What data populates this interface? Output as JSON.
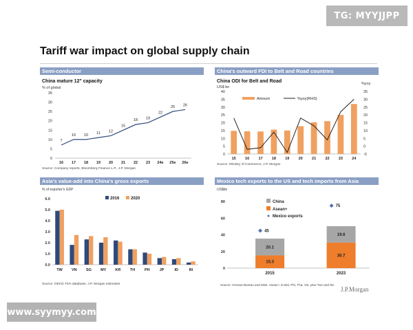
{
  "watermarks": {
    "top": "TG: MYYJJPP",
    "bottom": "www.syymyy.com"
  },
  "page_title": "Tariff war impact on global supply chain",
  "footer_brand": "J.P.Morgan",
  "colors": {
    "header": "#8a9fc4",
    "orange": "#f0a060",
    "orange_dark": "#ee7d2c",
    "navy": "#2e4a7a",
    "gray": "#a6a6a6",
    "blue_marker": "#4f6fb0"
  },
  "chart_data": [
    {
      "id": "semiconductor",
      "type": "line",
      "panel_header": "Semi-conductor",
      "title": "China mature 12\" capacity",
      "ylabel": "% of global",
      "categories": [
        "16",
        "17",
        "18",
        "19",
        "20",
        "21",
        "22",
        "23",
        "24e",
        "25e",
        "26e"
      ],
      "values": [
        7,
        10,
        10,
        11,
        12,
        15,
        18,
        19,
        22,
        25,
        26
      ],
      "ylim": [
        0,
        35
      ],
      "yticks": [
        0,
        5,
        10,
        15,
        20,
        25,
        30,
        35
      ],
      "source": "Source: Company reports, Bloomberg Finance L.P., J.P. Morgan"
    },
    {
      "id": "odi",
      "type": "bar+line",
      "panel_header": "China's outward FDI to Belt and Road countries",
      "title": "China ODI for Belt and Road",
      "ylabel_left": "US$ bn",
      "ylabel_right": "%yoy",
      "categories": [
        "15",
        "16",
        "17",
        "18",
        "19",
        "20",
        "21",
        "22",
        "23",
        "24"
      ],
      "series": [
        {
          "name": "Amount",
          "axis": "left",
          "values": [
            14.8,
            14.5,
            14.4,
            15.6,
            15.0,
            17.8,
            20.3,
            21.0,
            25.0,
            32.0
          ]
        },
        {
          "name": "%yoy(RHS)",
          "axis": "right",
          "values": [
            18,
            -2,
            -1,
            9,
            -4,
            18,
            13,
            4,
            22,
            30
          ]
        }
      ],
      "ylim_left": [
        0,
        40
      ],
      "yticks_left": [
        0,
        5,
        10,
        15,
        20,
        25,
        30,
        35,
        40
      ],
      "ylim_right": [
        -5,
        35
      ],
      "yticks_right": [
        -5,
        0,
        5,
        10,
        15,
        20,
        25,
        30,
        35
      ],
      "source": "Source: Ministry of Commerce, J.P. Morgan"
    },
    {
      "id": "valueadd",
      "type": "bar",
      "panel_header": "Asia's value-add into China's gross exports",
      "ylabel": "% of exporter's GDP",
      "categories": [
        "TW",
        "VN",
        "SG",
        "MY",
        "KR",
        "TH",
        "PH",
        "JP",
        "ID",
        "IN"
      ],
      "series": [
        {
          "name": "2016",
          "values": [
            4.9,
            1.8,
            2.3,
            2.0,
            2.2,
            1.4,
            1.1,
            0.6,
            0.5,
            0.2
          ]
        },
        {
          "name": "2020",
          "values": [
            5.0,
            2.7,
            2.6,
            2.5,
            2.1,
            1.4,
            1.0,
            0.7,
            0.6,
            0.3
          ]
        }
      ],
      "ylim": [
        0,
        6
      ],
      "yticks": [
        0.0,
        1.0,
        2.0,
        3.0,
        4.0,
        5.0,
        6.0
      ],
      "source": "Source: OECD TiVA database, J.P. Morgan estimates"
    },
    {
      "id": "mexico",
      "type": "stacked_bar",
      "panel_header": "Mexico tech exports to the US and tech imports from Asia",
      "ylabel": "US$bn",
      "categories": [
        "2015",
        "2023"
      ],
      "series": [
        {
          "name": "Asean+",
          "values": [
            15.3,
            30.7
          ]
        },
        {
          "name": "China",
          "values": [
            20.1,
            19.6
          ]
        }
      ],
      "markers": {
        "name": "Mexico exports",
        "values": [
          45,
          75
        ]
      },
      "ylim": [
        0,
        80
      ],
      "yticks": [
        0,
        20,
        40,
        60,
        80
      ],
      "source": "Source: Census Bureau and MoE. Asean+ is Mal, Phi, Tha, Vie, plus Twn and SK."
    }
  ]
}
